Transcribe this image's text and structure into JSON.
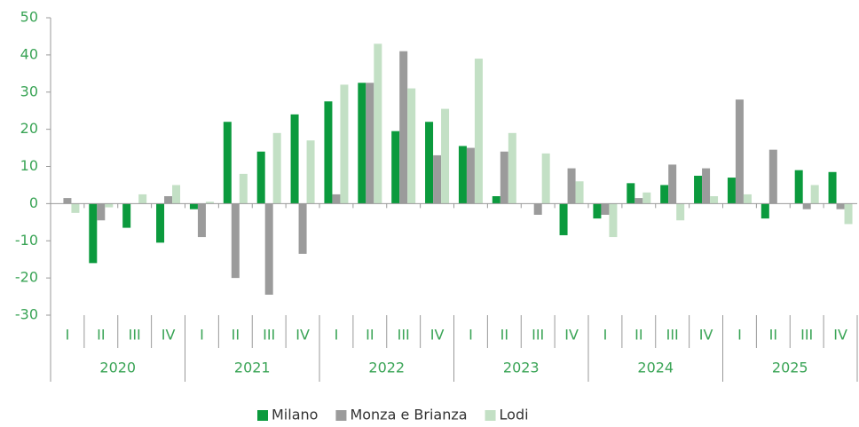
{
  "chart_data": {
    "type": "bar",
    "categories": [
      "I",
      "II",
      "III",
      "IV",
      "I",
      "II",
      "III",
      "IV",
      "I",
      "II",
      "III",
      "IV",
      "I",
      "II",
      "III",
      "IV",
      "I",
      "II",
      "III",
      "IV",
      "I",
      "II",
      "III",
      "IV"
    ],
    "years": [
      "2020",
      "2021",
      "2022",
      "2023",
      "2024",
      "2025"
    ],
    "series": [
      {
        "name": "Milano",
        "color": "#0b9a3d",
        "values": [
          0,
          -16,
          -6.5,
          -10.5,
          -1.5,
          22,
          14,
          24,
          27.5,
          32.5,
          19.5,
          22,
          15.5,
          2,
          0,
          -8.5,
          -4,
          5.5,
          5,
          7.5,
          7,
          -4,
          9,
          8.5
        ]
      },
      {
        "name": "Monza e Brianza",
        "color": "#9b9b9b",
        "values": [
          1.5,
          -4.5,
          0,
          2,
          -9,
          -20,
          -24.5,
          -13.5,
          2.5,
          32.5,
          41,
          13,
          15,
          14,
          -3,
          9.5,
          -3,
          1.5,
          10.5,
          9.5,
          28,
          14.5,
          -1.5,
          -1.5
        ]
      },
      {
        "name": "Lodi",
        "color": "#c3e0c5",
        "values": [
          -2.5,
          -1,
          2.5,
          5,
          0.5,
          8,
          19,
          17,
          32,
          43,
          31,
          25.5,
          39,
          19,
          13.5,
          6,
          -9,
          3,
          -4.5,
          2,
          2.5,
          0,
          5,
          -5.5
        ]
      }
    ],
    "ylim": [
      -30,
      50
    ],
    "yticks": [
      -30,
      -20,
      -10,
      0,
      10,
      20,
      30,
      40,
      50
    ],
    "grid": false,
    "legend": "bottom"
  }
}
